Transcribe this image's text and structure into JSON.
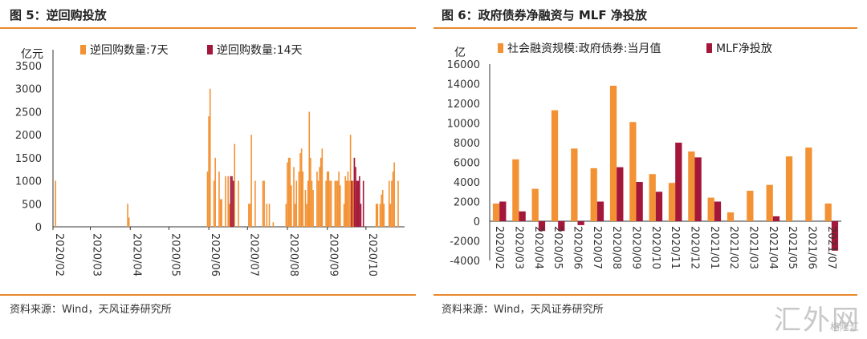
{
  "colors": {
    "orange": "#F39234",
    "maroon": "#A3173A",
    "accent_rule": "#E8892D"
  },
  "watermark": {
    "main": "汇外网",
    "sub": "格隆汇"
  },
  "left": {
    "title": "图 5：逆回购投放",
    "source": "资料来源：Wind，天风证券研究所",
    "chart_data": {
      "type": "bar",
      "unit_label": "亿元",
      "ylim": [
        0,
        3500
      ],
      "yticks": [
        "0",
        "500",
        "1000",
        "1500",
        "2000",
        "2500",
        "3000",
        "3500"
      ],
      "xlim": [
        "2020-02-01",
        "2020-10-31"
      ],
      "xticks": [
        {
          "date": "2020-02-01",
          "label": "2020/02"
        },
        {
          "date": "2020-03-01",
          "label": "2020/03"
        },
        {
          "date": "2020-04-01",
          "label": "2020/04"
        },
        {
          "date": "2020-05-01",
          "label": "2020/05"
        },
        {
          "date": "2020-06-01",
          "label": "2020/06"
        },
        {
          "date": "2020-07-01",
          "label": "2020/07"
        },
        {
          "date": "2020-08-01",
          "label": "2020/08"
        },
        {
          "date": "2020-09-01",
          "label": "2020/09"
        },
        {
          "date": "2020-10-01",
          "label": "2020/10"
        }
      ],
      "series": [
        {
          "name": "逆回购数量:7天",
          "color": "#F39234",
          "points": [
            [
              "2020-02-03",
              1000
            ],
            [
              "2020-03-30",
              500
            ],
            [
              "2020-03-31",
              200
            ],
            [
              "2020-05-31",
              1200
            ],
            [
              "2020-06-01",
              2400
            ],
            [
              "2020-06-02",
              3000
            ],
            [
              "2020-06-05",
              1000
            ],
            [
              "2020-06-06",
              1500
            ],
            [
              "2020-06-09",
              1200
            ],
            [
              "2020-06-10",
              600
            ],
            [
              "2020-06-11",
              600
            ],
            [
              "2020-06-14",
              1100
            ],
            [
              "2020-06-16",
              1100
            ],
            [
              "2020-06-17",
              500
            ],
            [
              "2020-06-21",
              1800
            ],
            [
              "2020-06-24",
              1000
            ],
            [
              "2020-07-02",
              500
            ],
            [
              "2020-07-03",
              500
            ],
            [
              "2020-07-04",
              2000
            ],
            [
              "2020-07-07",
              1000
            ],
            [
              "2020-07-13",
              1000
            ],
            [
              "2020-07-14",
              1000
            ],
            [
              "2020-07-16",
              500
            ],
            [
              "2020-07-18",
              500
            ],
            [
              "2020-07-21",
              100
            ],
            [
              "2020-07-31",
              500
            ],
            [
              "2020-08-01",
              1400
            ],
            [
              "2020-08-02",
              1500
            ],
            [
              "2020-08-03",
              1500
            ],
            [
              "2020-08-04",
              900
            ],
            [
              "2020-08-06",
              1300
            ],
            [
              "2020-08-07",
              500
            ],
            [
              "2020-08-08",
              1000
            ],
            [
              "2020-08-10",
              1200
            ],
            [
              "2020-08-11",
              1600
            ],
            [
              "2020-08-12",
              1700
            ],
            [
              "2020-08-13",
              1200
            ],
            [
              "2020-08-15",
              800
            ],
            [
              "2020-08-16",
              500
            ],
            [
              "2020-08-17",
              1000
            ],
            [
              "2020-08-18",
              2500
            ],
            [
              "2020-08-19",
              1500
            ],
            [
              "2020-08-20",
              1000
            ],
            [
              "2020-08-21",
              800
            ],
            [
              "2020-08-24",
              1200
            ],
            [
              "2020-08-25",
              1000
            ],
            [
              "2020-08-26",
              1300
            ],
            [
              "2020-08-27",
              1500
            ],
            [
              "2020-08-28",
              1700
            ],
            [
              "2020-08-31",
              1000
            ],
            [
              "2020-09-01",
              1200
            ],
            [
              "2020-09-02",
              1200
            ],
            [
              "2020-09-03",
              1000
            ],
            [
              "2020-09-04",
              1000
            ],
            [
              "2020-09-07",
              1000
            ],
            [
              "2020-09-08",
              1000
            ],
            [
              "2020-09-09",
              1000
            ],
            [
              "2020-09-10",
              1200
            ],
            [
              "2020-09-11",
              900
            ],
            [
              "2020-09-14",
              500
            ],
            [
              "2020-09-15",
              1100
            ],
            [
              "2020-09-16",
              1000
            ],
            [
              "2020-09-17",
              1200
            ],
            [
              "2020-09-18",
              1000
            ],
            [
              "2020-09-19",
              2000
            ],
            [
              "2020-09-21",
              1000
            ],
            [
              "2020-09-22",
              1500
            ],
            [
              "2020-09-23",
              800
            ],
            [
              "2020-09-24",
              700
            ],
            [
              "2020-10-09",
              500
            ],
            [
              "2020-10-10",
              500
            ],
            [
              "2020-10-12",
              500
            ],
            [
              "2020-10-13",
              700
            ],
            [
              "2020-10-14",
              800
            ],
            [
              "2020-10-15",
              500
            ],
            [
              "2020-10-19",
              1000
            ],
            [
              "2020-10-20",
              500
            ],
            [
              "2020-10-21",
              1000
            ],
            [
              "2020-10-22",
              1200
            ],
            [
              "2020-10-23",
              1400
            ],
            [
              "2020-10-26",
              1000
            ]
          ]
        },
        {
          "name": "逆回购数量:14天",
          "color": "#A3173A",
          "points": [
            [
              "2020-06-18",
              1100
            ],
            [
              "2020-06-19",
              1100
            ],
            [
              "2020-06-20",
              1000
            ],
            [
              "2020-09-20",
              1000
            ],
            [
              "2020-09-22",
              1500
            ],
            [
              "2020-09-23",
              1300
            ],
            [
              "2020-09-24",
              1000
            ],
            [
              "2020-09-25",
              1000
            ],
            [
              "2020-09-26",
              1100
            ],
            [
              "2020-09-27",
              500
            ],
            [
              "2020-09-29",
              1000
            ]
          ]
        }
      ]
    }
  },
  "right": {
    "title": "图 6：政府债券净融资与 MLF 净投放",
    "source": "资料来源：Wind，天风证券研究所",
    "chart_data": {
      "type": "bar",
      "unit_label": "亿",
      "ylim": [
        -4000,
        16000
      ],
      "yticks": [
        "-4000",
        "-2000",
        "0",
        "2000",
        "4000",
        "6000",
        "8000",
        "10000",
        "12000",
        "14000",
        "16000"
      ],
      "categories": [
        "2020/02",
        "2020/03",
        "2020/04",
        "2020/05",
        "2020/06",
        "2020/07",
        "2020/08",
        "2020/09",
        "2020/10",
        "2020/11",
        "2020/12",
        "2021/01",
        "2021/02",
        "2021/03",
        "2021/04",
        "2021/05",
        "2021/06",
        "2021/07"
      ],
      "series": [
        {
          "name": "社会融资规模:政府债券:当月值",
          "color": "#F39234",
          "values": [
            1800,
            6300,
            3300,
            11300,
            7400,
            5400,
            13800,
            10100,
            4800,
            3900,
            7100,
            2400,
            900,
            3100,
            3700,
            6600,
            7500,
            1800
          ]
        },
        {
          "name": "MLF净投放",
          "color": "#A3173A",
          "values": [
            2000,
            1000,
            -1000,
            -1000,
            -400,
            2000,
            5500,
            4000,
            3000,
            8000,
            6500,
            2000,
            0,
            0,
            500,
            0,
            0,
            -3000
          ]
        }
      ]
    }
  }
}
